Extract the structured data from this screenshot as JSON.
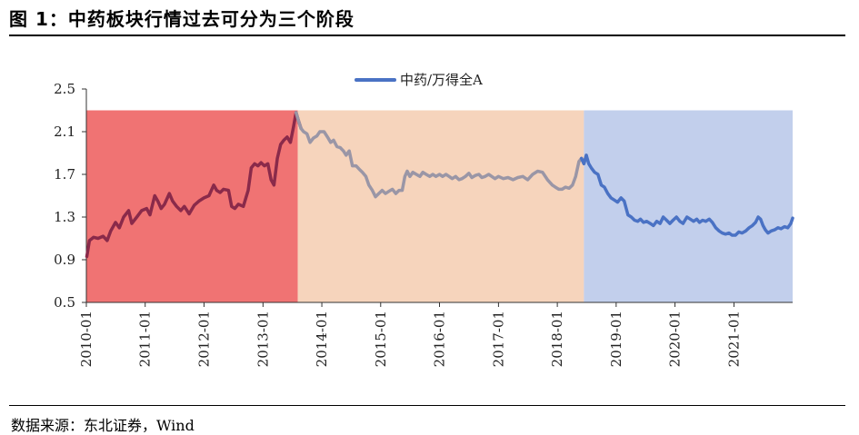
{
  "title": "图 1：中药板块行情过去可分为三个阶段",
  "source": "数据来源：东北证券，Wind",
  "chart_data": {
    "type": "line",
    "title": "",
    "xlabel": "",
    "ylabel": "",
    "ylim": [
      0.5,
      2.5
    ],
    "yticks": [
      "0.5",
      "0.9",
      "1.3",
      "1.7",
      "2.1",
      "2.5"
    ],
    "xticks": [
      "2010-01",
      "2011-01",
      "2012-01",
      "2013-01",
      "2014-01",
      "2015-01",
      "2016-01",
      "2017-01",
      "2018-01",
      "2019-01",
      "2020-01",
      "2021-01"
    ],
    "xrange": [
      "2010-01-01",
      "2021-12-31"
    ],
    "legend_position": "top-center",
    "series": [
      {
        "name": "中药/万得全A",
        "color": "#4a72c4",
        "points": [
          [
            "2010-01-04",
            0.93
          ],
          [
            "2010-01-20",
            1.08
          ],
          [
            "2010-02-15",
            1.11
          ],
          [
            "2010-03-15",
            1.1
          ],
          [
            "2010-04-15",
            1.12
          ],
          [
            "2010-05-10",
            1.08
          ],
          [
            "2010-06-01",
            1.17
          ],
          [
            "2010-07-01",
            1.25
          ],
          [
            "2010-07-25",
            1.2
          ],
          [
            "2010-08-20",
            1.3
          ],
          [
            "2010-09-20",
            1.36
          ],
          [
            "2010-10-10",
            1.24
          ],
          [
            "2010-11-10",
            1.3
          ],
          [
            "2010-12-10",
            1.36
          ],
          [
            "2011-01-10",
            1.38
          ],
          [
            "2011-01-31",
            1.32
          ],
          [
            "2011-03-01",
            1.5
          ],
          [
            "2011-03-20",
            1.45
          ],
          [
            "2011-04-10",
            1.38
          ],
          [
            "2011-05-01",
            1.42
          ],
          [
            "2011-05-31",
            1.52
          ],
          [
            "2011-06-20",
            1.45
          ],
          [
            "2011-07-15",
            1.4
          ],
          [
            "2011-08-10",
            1.36
          ],
          [
            "2011-09-01",
            1.4
          ],
          [
            "2011-10-01",
            1.33
          ],
          [
            "2011-11-01",
            1.41
          ],
          [
            "2011-12-01",
            1.45
          ],
          [
            "2012-01-01",
            1.48
          ],
          [
            "2012-02-01",
            1.5
          ],
          [
            "2012-03-01",
            1.6
          ],
          [
            "2012-03-20",
            1.55
          ],
          [
            "2012-04-10",
            1.53
          ],
          [
            "2012-05-01",
            1.56
          ],
          [
            "2012-06-01",
            1.55
          ],
          [
            "2012-06-20",
            1.4
          ],
          [
            "2012-07-10",
            1.38
          ],
          [
            "2012-08-01",
            1.42
          ],
          [
            "2012-09-01",
            1.4
          ],
          [
            "2012-10-01",
            1.55
          ],
          [
            "2012-10-20",
            1.76
          ],
          [
            "2012-11-10",
            1.8
          ],
          [
            "2012-12-01",
            1.78
          ],
          [
            "2012-12-20",
            1.81
          ],
          [
            "2013-01-10",
            1.78
          ],
          [
            "2013-01-31",
            1.8
          ],
          [
            "2013-02-20",
            1.65
          ],
          [
            "2013-03-10",
            1.6
          ],
          [
            "2013-03-31",
            1.85
          ],
          [
            "2013-04-20",
            1.98
          ],
          [
            "2013-05-10",
            2.02
          ],
          [
            "2013-05-31",
            2.05
          ],
          [
            "2013-06-20",
            2.0
          ],
          [
            "2013-07-10",
            2.15
          ],
          [
            "2013-07-25",
            2.28
          ],
          [
            "2013-08-10",
            2.2
          ],
          [
            "2013-08-25",
            2.13
          ],
          [
            "2013-09-10",
            2.1
          ],
          [
            "2013-10-01",
            2.08
          ],
          [
            "2013-10-20",
            2.0
          ],
          [
            "2013-11-10",
            2.04
          ],
          [
            "2013-12-01",
            2.06
          ],
          [
            "2013-12-20",
            2.1
          ],
          [
            "2014-01-15",
            2.1
          ],
          [
            "2014-02-05",
            2.05
          ],
          [
            "2014-02-25",
            2.0
          ],
          [
            "2014-03-15",
            2.02
          ],
          [
            "2014-04-05",
            1.96
          ],
          [
            "2014-04-25",
            1.95
          ],
          [
            "2014-05-15",
            1.92
          ],
          [
            "2014-06-01",
            1.88
          ],
          [
            "2014-06-20",
            1.92
          ],
          [
            "2014-07-10",
            1.78
          ],
          [
            "2014-08-01",
            1.78
          ],
          [
            "2014-08-20",
            1.75
          ],
          [
            "2014-09-10",
            1.72
          ],
          [
            "2014-10-01",
            1.68
          ],
          [
            "2014-10-20",
            1.6
          ],
          [
            "2014-11-10",
            1.55
          ],
          [
            "2014-11-30",
            1.49
          ],
          [
            "2014-12-20",
            1.52
          ],
          [
            "2015-01-10",
            1.55
          ],
          [
            "2015-01-31",
            1.52
          ],
          [
            "2015-02-20",
            1.54
          ],
          [
            "2015-03-15",
            1.56
          ],
          [
            "2015-04-05",
            1.52
          ],
          [
            "2015-04-25",
            1.55
          ],
          [
            "2015-05-15",
            1.55
          ],
          [
            "2015-05-31",
            1.68
          ],
          [
            "2015-06-15",
            1.73
          ],
          [
            "2015-07-01",
            1.68
          ],
          [
            "2015-07-20",
            1.72
          ],
          [
            "2015-08-10",
            1.7
          ],
          [
            "2015-09-01",
            1.68
          ],
          [
            "2015-09-20",
            1.72
          ],
          [
            "2015-10-10",
            1.7
          ],
          [
            "2015-11-01",
            1.68
          ],
          [
            "2015-11-20",
            1.7
          ],
          [
            "2015-12-10",
            1.68
          ],
          [
            "2016-01-01",
            1.7
          ],
          [
            "2016-01-20",
            1.68
          ],
          [
            "2016-02-10",
            1.7
          ],
          [
            "2016-03-01",
            1.68
          ],
          [
            "2016-03-20",
            1.66
          ],
          [
            "2016-04-10",
            1.68
          ],
          [
            "2016-05-01",
            1.65
          ],
          [
            "2016-05-20",
            1.66
          ],
          [
            "2016-06-10",
            1.68
          ],
          [
            "2016-07-01",
            1.71
          ],
          [
            "2016-07-20",
            1.67
          ],
          [
            "2016-08-10",
            1.69
          ],
          [
            "2016-09-01",
            1.7
          ],
          [
            "2016-09-20",
            1.67
          ],
          [
            "2016-10-10",
            1.68
          ],
          [
            "2016-11-01",
            1.7
          ],
          [
            "2016-11-20",
            1.68
          ],
          [
            "2016-12-10",
            1.66
          ],
          [
            "2017-01-01",
            1.68
          ],
          [
            "2017-01-31",
            1.66
          ],
          [
            "2017-03-01",
            1.67
          ],
          [
            "2017-04-01",
            1.65
          ],
          [
            "2017-05-01",
            1.67
          ],
          [
            "2017-06-01",
            1.68
          ],
          [
            "2017-07-01",
            1.65
          ],
          [
            "2017-08-01",
            1.7
          ],
          [
            "2017-09-01",
            1.73
          ],
          [
            "2017-10-01",
            1.72
          ],
          [
            "2017-11-01",
            1.65
          ],
          [
            "2017-12-01",
            1.6
          ],
          [
            "2017-12-20",
            1.58
          ],
          [
            "2018-01-10",
            1.56
          ],
          [
            "2018-01-31",
            1.56
          ],
          [
            "2018-02-20",
            1.58
          ],
          [
            "2018-03-15",
            1.57
          ],
          [
            "2018-04-05",
            1.6
          ],
          [
            "2018-04-25",
            1.68
          ],
          [
            "2018-05-15",
            1.82
          ],
          [
            "2018-05-31",
            1.85
          ],
          [
            "2018-06-15",
            1.8
          ],
          [
            "2018-06-30",
            1.88
          ],
          [
            "2018-07-15",
            1.8
          ],
          [
            "2018-07-31",
            1.76
          ],
          [
            "2018-08-20",
            1.72
          ],
          [
            "2018-09-10",
            1.7
          ],
          [
            "2018-10-01",
            1.6
          ],
          [
            "2018-10-20",
            1.58
          ],
          [
            "2018-11-10",
            1.52
          ],
          [
            "2018-11-30",
            1.48
          ],
          [
            "2018-12-20",
            1.46
          ],
          [
            "2019-01-10",
            1.44
          ],
          [
            "2019-01-31",
            1.48
          ],
          [
            "2019-02-20",
            1.45
          ],
          [
            "2019-03-15",
            1.32
          ],
          [
            "2019-04-05",
            1.3
          ],
          [
            "2019-04-25",
            1.27
          ],
          [
            "2019-05-15",
            1.26
          ],
          [
            "2019-06-01",
            1.28
          ],
          [
            "2019-06-20",
            1.25
          ],
          [
            "2019-07-10",
            1.26
          ],
          [
            "2019-08-01",
            1.24
          ],
          [
            "2019-08-20",
            1.22
          ],
          [
            "2019-09-10",
            1.26
          ],
          [
            "2019-10-01",
            1.24
          ],
          [
            "2019-10-20",
            1.3
          ],
          [
            "2019-11-10",
            1.27
          ],
          [
            "2019-11-30",
            1.24
          ],
          [
            "2019-12-20",
            1.27
          ],
          [
            "2020-01-10",
            1.3
          ],
          [
            "2020-01-31",
            1.26
          ],
          [
            "2020-02-20",
            1.24
          ],
          [
            "2020-03-15",
            1.3
          ],
          [
            "2020-04-05",
            1.28
          ],
          [
            "2020-04-25",
            1.26
          ],
          [
            "2020-05-15",
            1.28
          ],
          [
            "2020-06-01",
            1.25
          ],
          [
            "2020-06-20",
            1.27
          ],
          [
            "2020-07-10",
            1.26
          ],
          [
            "2020-08-01",
            1.28
          ],
          [
            "2020-08-20",
            1.25
          ],
          [
            "2020-09-10",
            1.2
          ],
          [
            "2020-10-01",
            1.17
          ],
          [
            "2020-10-20",
            1.15
          ],
          [
            "2020-11-10",
            1.14
          ],
          [
            "2020-12-01",
            1.15
          ],
          [
            "2020-12-20",
            1.13
          ],
          [
            "2021-01-10",
            1.13
          ],
          [
            "2021-01-31",
            1.16
          ],
          [
            "2021-02-20",
            1.15
          ],
          [
            "2021-03-15",
            1.17
          ],
          [
            "2021-04-05",
            1.2
          ],
          [
            "2021-04-25",
            1.22
          ],
          [
            "2021-05-15",
            1.25
          ],
          [
            "2021-05-31",
            1.3
          ],
          [
            "2021-06-15",
            1.28
          ],
          [
            "2021-06-30",
            1.22
          ],
          [
            "2021-07-15",
            1.18
          ],
          [
            "2021-07-31",
            1.15
          ],
          [
            "2021-08-20",
            1.17
          ],
          [
            "2021-09-10",
            1.18
          ],
          [
            "2021-10-01",
            1.2
          ],
          [
            "2021-10-20",
            1.19
          ],
          [
            "2021-11-10",
            1.21
          ],
          [
            "2021-12-01",
            1.2
          ],
          [
            "2021-12-20",
            1.24
          ],
          [
            "2021-12-31",
            1.29
          ]
        ]
      }
    ],
    "phases": [
      {
        "start": "2010-01-01",
        "end": "2013-08-05",
        "fill": "#f07373",
        "line": "#8a2a4a"
      },
      {
        "start": "2013-08-05",
        "end": "2018-06-15",
        "fill": "#f6d4bc",
        "line": "#9a96a6"
      },
      {
        "start": "2018-06-15",
        "end": "2021-12-31",
        "fill": "#c2cfec",
        "line": "#4a72c4"
      }
    ]
  }
}
